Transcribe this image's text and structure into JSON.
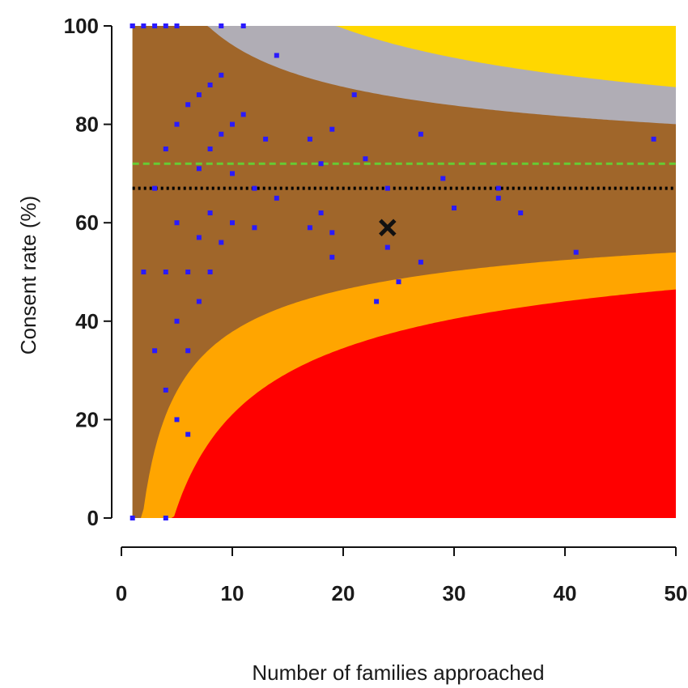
{
  "chart_data": {
    "type": "scatter",
    "title": "",
    "xlabel": "Number of families approached",
    "ylabel": "Consent rate (%)",
    "xlim": [
      0,
      50
    ],
    "ylim": [
      0,
      100
    ],
    "x_ticks": [
      "0",
      "10",
      "20",
      "30",
      "40",
      "50"
    ],
    "y_ticks": [
      "0",
      "20",
      "40",
      "60",
      "80",
      "100"
    ],
    "grid": false,
    "legend": "none",
    "mean_line": {
      "y": 67,
      "color": "#000000",
      "style": "dotted"
    },
    "target_line": {
      "y": 72,
      "color": "#66cc33",
      "style": "dashed"
    },
    "highlight_marker": {
      "symbol": "x",
      "x": 24,
      "y": 59
    },
    "funnel_bands": {
      "center": 67,
      "inner_z": 1.96,
      "outer_z": 3.09,
      "colors": {
        "above_outer": "#ffd700",
        "above_inner": "#b0adb5",
        "within": "#a0662a",
        "below_inner": "#ffa500",
        "below_outer": "#ff0000"
      }
    },
    "point_color": "#2a1aff",
    "series": [
      {
        "x": [
          1,
          1,
          2,
          3,
          4,
          5,
          9,
          11,
          14,
          8,
          9,
          6,
          7,
          5,
          10,
          4,
          8,
          11,
          13,
          17,
          18,
          22,
          27,
          48,
          12,
          14,
          3,
          7,
          10,
          24,
          29,
          34,
          34,
          36,
          30,
          8,
          10,
          12,
          5,
          17,
          18,
          19,
          9,
          24,
          7,
          19,
          27,
          2,
          4,
          6,
          8,
          25,
          23,
          5,
          7,
          3,
          6,
          4,
          5,
          6,
          1,
          4,
          41,
          19,
          21,
          9
        ],
        "y": [
          100,
          100,
          100,
          100,
          100,
          100,
          100,
          100,
          94,
          88,
          90,
          84,
          86,
          80,
          80,
          75,
          75,
          82,
          77,
          77,
          72,
          73,
          78,
          77,
          67,
          65,
          67,
          71,
          70,
          67,
          69,
          65,
          67,
          62,
          63,
          62,
          60,
          59,
          60,
          59,
          62,
          58,
          56,
          55,
          57,
          53,
          52,
          50,
          50,
          50,
          50,
          48,
          44,
          40,
          44,
          34,
          34,
          26,
          20,
          17,
          0,
          0,
          54,
          79,
          86,
          78
        ]
      }
    ]
  }
}
